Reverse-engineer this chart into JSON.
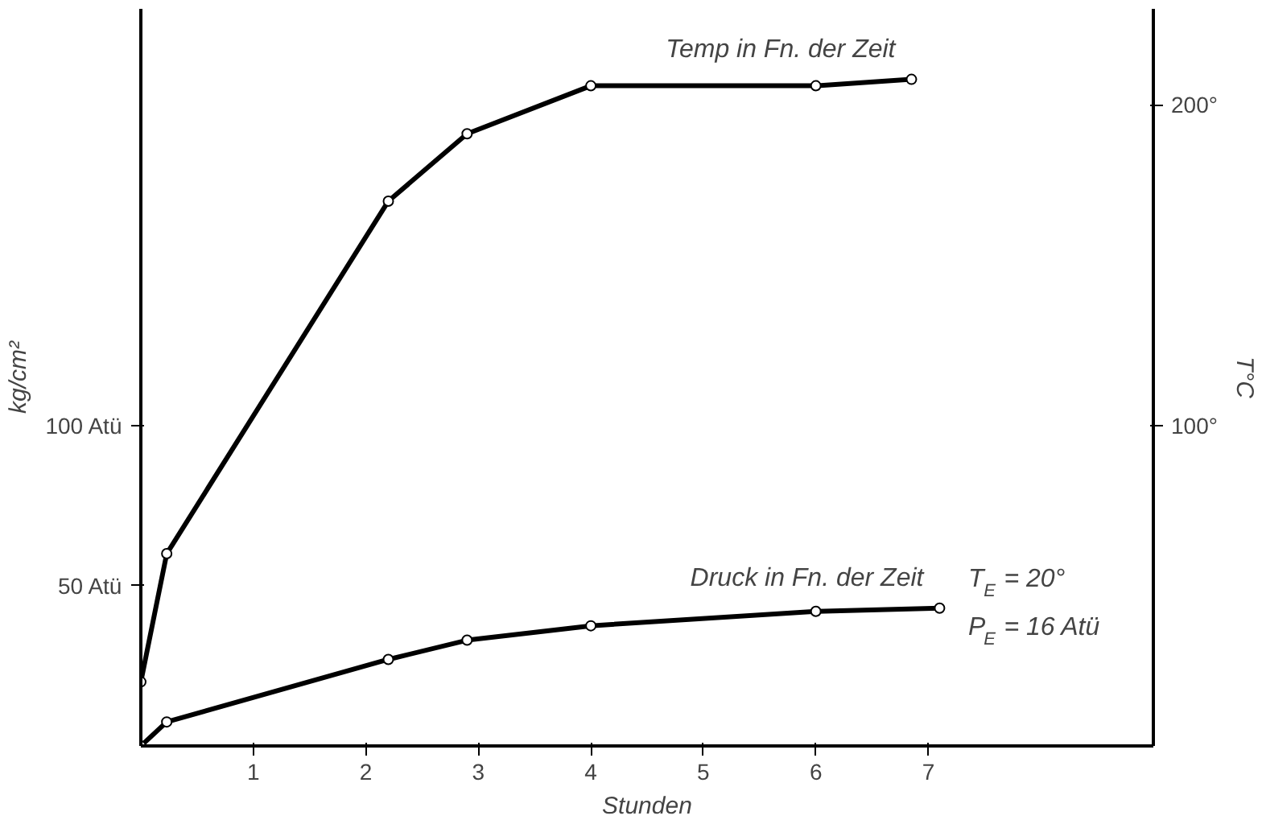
{
  "chart_data": {
    "type": "line",
    "xlabel": "Stunden",
    "ylabel": "kg/cm²",
    "y2label": "T°C",
    "xlim": [
      0,
      9
    ],
    "xticks": [
      1,
      2,
      3,
      4,
      5,
      6,
      7
    ],
    "ylim": [
      0,
      230
    ],
    "yticks": [
      {
        "value": 50,
        "label": "50 Atü"
      },
      {
        "value": 100,
        "label": "100 Atü"
      }
    ],
    "y2lim": [
      0,
      230
    ],
    "y2ticks": [
      {
        "value": 100,
        "label": "100°"
      },
      {
        "value": 200,
        "label": "200°"
      }
    ],
    "series": [
      {
        "name": "Temp in Fn. der Zeit",
        "color": "#000000",
        "x": [
          0,
          0.23,
          2.2,
          2.9,
          4,
          6,
          6.85
        ],
        "values": [
          20,
          60,
          170,
          191,
          206,
          206,
          208
        ]
      },
      {
        "name": "Druck in Fn. der Zeit",
        "color": "#000000",
        "x": [
          0,
          0.23,
          2.2,
          2.9,
          4,
          6,
          7.1
        ],
        "values": [
          0,
          7.5,
          27,
          33,
          37.5,
          42,
          43
        ]
      }
    ],
    "annotations": [
      "T$_{E}$ = 20°",
      "P$_{E}$ = 16 Atü"
    ],
    "marker": "circle",
    "line_style": "solid",
    "grid": false
  }
}
